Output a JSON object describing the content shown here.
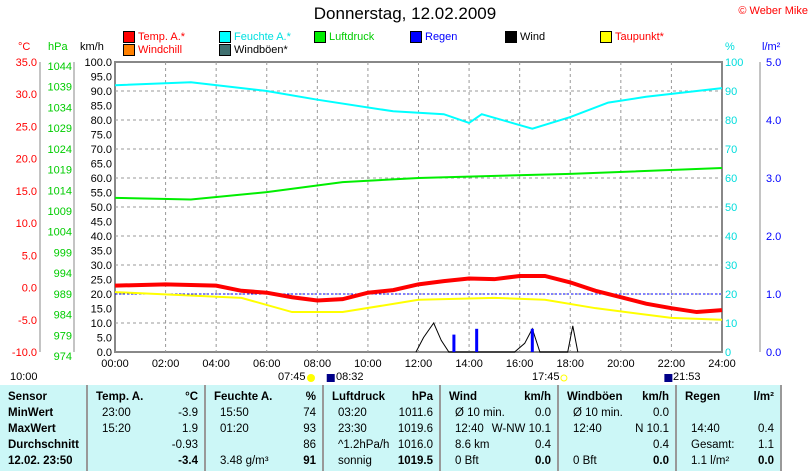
{
  "title": "Donnerstag, 12.02.2009",
  "copyright": "© Weber Mike",
  "legend": [
    {
      "label": "Temp. A.*",
      "color": "#ff0000",
      "text_color": "#ff0000"
    },
    {
      "label": "Feuchte A.*",
      "color": "#00ffff",
      "text_color": "#00e0e0"
    },
    {
      "label": "Luftdruck",
      "color": "#00ee00",
      "text_color": "#00cc00"
    },
    {
      "label": "Regen",
      "color": "#0000ff",
      "text_color": "#0000ff"
    },
    {
      "label": "Wind",
      "color": "#000000",
      "text_color": "#000000"
    },
    {
      "label": "Taupunkt*",
      "color": "#ffff00",
      "text_color": "#ff0000"
    },
    {
      "label": "Windchill",
      "color": "#ff8000",
      "text_color": "#ff0000"
    },
    {
      "label": "Windböen*",
      "color": "#407070",
      "text_color": "#000000"
    }
  ],
  "astro": {
    "moon1": "10:00",
    "sunrise": "07:45",
    "moonrise": "08:32",
    "sunset": "17:45",
    "moonset": "21:53"
  },
  "chart_data": {
    "type": "line",
    "title": "Donnerstag, 12.02.2009",
    "x_ticks": [
      "00:00",
      "02:00",
      "04:00",
      "06:00",
      "08:00",
      "10:00",
      "12:00",
      "14:00",
      "16:00",
      "18:00",
      "20:00",
      "22:00",
      "24:00"
    ],
    "axes": {
      "temp": {
        "unit": "°C",
        "range": [
          -10,
          35
        ],
        "ticks": [
          "35.0",
          "30.0",
          "25.0",
          "20.0",
          "15.0",
          "10.0",
          "5.0",
          "0.0",
          "-5.0",
          "-10.0"
        ]
      },
      "pressure": {
        "unit": "hPa",
        "range": [
          974,
          1044
        ],
        "ticks": [
          "1044",
          "1039",
          "1034",
          "1029",
          "1024",
          "1019",
          "1014",
          "1009",
          "1004",
          "999",
          "994",
          "989",
          "984",
          "979",
          "974"
        ]
      },
      "wind": {
        "unit": "km/h",
        "range": [
          0,
          100
        ],
        "ticks": [
          "100.0",
          "95.0",
          "90.0",
          "85.0",
          "80.0",
          "75.0",
          "70.0",
          "65.0",
          "60.0",
          "55.0",
          "50.0",
          "45.0",
          "40.0",
          "35.0",
          "30.0",
          "25.0",
          "20.0",
          "15.0",
          "10.0",
          "5.0",
          "0.0"
        ]
      },
      "humidity": {
        "unit": "%",
        "range": [
          0,
          100
        ],
        "ticks": [
          "100",
          "90",
          "80",
          "70",
          "60",
          "50",
          "40",
          "30",
          "20",
          "10",
          "0"
        ]
      },
      "rain": {
        "unit": "l/m²",
        "range": [
          0,
          5
        ],
        "ticks": [
          "5.0",
          "4.0",
          "3.0",
          "2.0",
          "1.0",
          "0.0"
        ]
      }
    },
    "series": [
      {
        "name": "Temp. A.*",
        "axis": "temp",
        "color": "#ff0000",
        "x": [
          0,
          2,
          4,
          5,
          6,
          7,
          8,
          9,
          10,
          11,
          12,
          13,
          14,
          15,
          16,
          17,
          18,
          19,
          20,
          21,
          22,
          23,
          24
        ],
        "y": [
          0.3,
          0.5,
          0.3,
          -0.5,
          -0.8,
          -1.5,
          -2.0,
          -1.8,
          -0.8,
          -0.4,
          0.5,
          1.0,
          1.4,
          1.3,
          1.8,
          1.8,
          0.8,
          -0.5,
          -1.5,
          -2.5,
          -3.2,
          -3.8,
          -3.5
        ]
      },
      {
        "name": "Feuchte A.*",
        "axis": "humidity",
        "color": "#00ffff",
        "x": [
          0,
          3,
          6,
          8,
          11,
          13,
          14,
          14.5,
          16.5,
          18,
          19.5,
          21,
          24
        ],
        "y": [
          92,
          93,
          90,
          87,
          83,
          82,
          79,
          82,
          77,
          81,
          86,
          88,
          91
        ]
      },
      {
        "name": "Luftdruck",
        "axis": "pressure",
        "color": "#00ee00",
        "x": [
          0,
          3,
          6,
          9,
          12,
          18,
          24
        ],
        "y": [
          1011.2,
          1010.8,
          1012.6,
          1015,
          1016,
          1017,
          1018.4
        ]
      },
      {
        "name": "Taupunkt*",
        "axis": "temp",
        "color": "#ffff00",
        "x": [
          0,
          5,
          7,
          9,
          12,
          15,
          17,
          19,
          22,
          24
        ],
        "y": [
          -0.7,
          -1.6,
          -3.8,
          -3.8,
          -1.9,
          -1.6,
          -1.9,
          -3.2,
          -4.7,
          -5.0
        ]
      },
      {
        "name": "Wind",
        "axis": "wind",
        "color": "#000000",
        "x": [
          11.9,
          12.2,
          12.6,
          12.9,
          13.2,
          15.8,
          16.2,
          16.5,
          16.8,
          17.9,
          18.1,
          18.3
        ],
        "y": [
          0,
          5,
          10,
          4,
          0,
          0,
          3,
          8,
          0,
          0,
          9,
          0
        ]
      },
      {
        "name": "Regen",
        "axis": "rain",
        "type": "bar",
        "color": "#0000ff",
        "x": [
          13.4,
          14.3,
          16.5
        ],
        "y": [
          0.3,
          0.4,
          0.4
        ]
      }
    ],
    "reference_line": {
      "axis": "rain",
      "value": 1.0,
      "color": "#0000ff"
    }
  },
  "table": {
    "sensor": {
      "h": "Sensor",
      "rows": [
        "MinWert",
        "MaxWert",
        "Durchschnitt",
        "12.02. 23:50"
      ]
    },
    "temp": {
      "h": "Temp. A.",
      "u": "°C",
      "rows": [
        [
          "23:00",
          "-3.9"
        ],
        [
          "15:20",
          "1.9"
        ],
        [
          "",
          "-0.93"
        ],
        [
          "",
          "-3.4"
        ]
      ]
    },
    "hum": {
      "h": "Feuchte A.",
      "u": "%",
      "rows": [
        [
          "15:50",
          "74"
        ],
        [
          "01:20",
          "93"
        ],
        [
          "",
          "86"
        ],
        [
          "3.48 g/m³",
          "91"
        ]
      ]
    },
    "press": {
      "h": "Luftdruck",
      "u": "hPa",
      "rows": [
        [
          "03:20",
          "1011.6"
        ],
        [
          "23:30",
          "1019.6"
        ],
        [
          "^1.2hPa/h",
          "1016.0"
        ],
        [
          "sonnig",
          "1019.5"
        ]
      ]
    },
    "wind": {
      "h": "Wind",
      "u": "km/h",
      "rows": [
        [
          "Ø 10 min.",
          "0.0"
        ],
        [
          "12:40",
          "W-NW 10.1"
        ],
        [
          "8.6 km",
          "0.4"
        ],
        [
          "0 Bft",
          "0.0"
        ]
      ]
    },
    "gust": {
      "h": "Windböen",
      "u": "km/h",
      "rows": [
        [
          "Ø 10 min.",
          "0.0"
        ],
        [
          "12:40",
          "N 10.1"
        ],
        [
          "",
          "0.4"
        ],
        [
          "0 Bft",
          "0.0"
        ]
      ]
    },
    "rain": {
      "h": "Regen",
      "u": "l/m²",
      "rows": [
        [
          "",
          ""
        ],
        [
          "14:40",
          "0.4"
        ],
        [
          "Gesamt:",
          "1.1"
        ],
        [
          "1.1 l/m²",
          "0.0"
        ]
      ]
    }
  }
}
